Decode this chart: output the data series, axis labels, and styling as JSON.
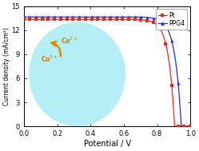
{
  "title": "",
  "xlabel": "Potential / V",
  "ylabel": "Current density (mA/cm²)",
  "xlim": [
    0.0,
    1.0
  ],
  "ylim": [
    0,
    15
  ],
  "yticks": [
    0,
    3,
    6,
    9,
    12,
    15
  ],
  "xticks": [
    0.0,
    0.2,
    0.4,
    0.6,
    0.8,
    1.0
  ],
  "pt_color": "#e8281e",
  "ppg4_color": "#2828dd",
  "bg_ellipse_color": "#a8ecf4",
  "Voc_pt": 0.905,
  "Voc_ppg4": 0.945,
  "Jsc_pt": 13.35,
  "Jsc_ppg4": 13.65,
  "ff_pt": 0.72,
  "ff_ppg4": 0.72,
  "n_markers_pt": 28,
  "n_markers_ppg4": 28
}
